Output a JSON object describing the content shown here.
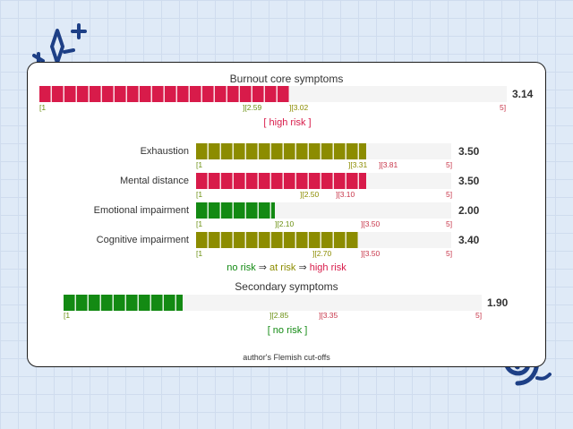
{
  "colors": {
    "high": "#d81b4a",
    "at": "#8c8c00",
    "no": "#138a13",
    "tick_green": "#6a8f10",
    "tick_red": "#c8364a"
  },
  "core": {
    "title": "Burnout core symptoms",
    "score": "3.14",
    "fill_fraction": 0.535,
    "ticks": {
      "t1": "[1",
      "t2": "][2.59",
      "t3": "][3.02",
      "t5": "5]"
    },
    "verdict": "[ high risk ]"
  },
  "dims": [
    {
      "label": "Exhaustion",
      "score": "3.50",
      "fill_fraction": 0.665,
      "ticks": {
        "t1": "[1",
        "t2": "][3.31",
        "t3": "][3.81",
        "t5": "5]"
      }
    },
    {
      "label": "Mental distance",
      "score": "3.50",
      "fill_fraction": 0.665,
      "ticks": {
        "t1": "[1",
        "t2": "][2.50",
        "t3": "][3.10",
        "t5": "5]"
      }
    },
    {
      "label": "Emotional impairment",
      "score": "2.00",
      "fill_fraction": 0.31,
      "ticks": {
        "t1": "[1",
        "t2": "][2.10",
        "t3": "][3.50",
        "t5": "5]"
      }
    },
    {
      "label": "Cognitive impairment",
      "score": "3.40",
      "fill_fraction": 0.635,
      "ticks": {
        "t1": "[1",
        "t2": "][2.70",
        "t3": "][3.50",
        "t5": "5]"
      }
    }
  ],
  "legend": {
    "no": "no risk",
    "arrow": "⇒",
    "at": "at risk",
    "high": "high risk"
  },
  "secondary": {
    "title": "Secondary symptoms",
    "score": "1.90",
    "fill_fraction": 0.285,
    "ticks": {
      "t1": "[1",
      "t2": "][2.85",
      "t3": "][3.35",
      "t5": "5]"
    },
    "verdict": "[ no risk ]"
  },
  "footer": "author's Flemish cut-offs",
  "icons": {
    "top_left": "sparkle-icon",
    "bottom_right": "swirl-icon"
  }
}
